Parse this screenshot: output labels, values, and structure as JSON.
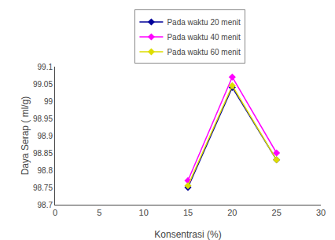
{
  "chart_data": {
    "type": "line",
    "xlabel": "Konsentrasi (%)",
    "ylabel": "Daya Serap ( ml/g)",
    "x": [
      15,
      20,
      25
    ],
    "series": [
      {
        "name": "Pada waktu 20 menit",
        "color": "#000099",
        "marker": "diamond",
        "line_style": "solid",
        "values": [
          98.75,
          99.04,
          98.83
        ]
      },
      {
        "name": "Pada waktu 40 menit",
        "color": "#FF00FF",
        "marker": "diamond",
        "line_style": "solid",
        "values": [
          98.77,
          99.07,
          98.85
        ]
      },
      {
        "name": "Pada waktu 60 menit",
        "color": "#DDDD00",
        "marker": "diamond",
        "line_style": "solid",
        "values": [
          98.755,
          99.045,
          98.83
        ]
      }
    ],
    "xlim": [
      0,
      30
    ],
    "xticks": [
      0,
      5,
      10,
      15,
      20,
      25,
      30
    ],
    "ylim": [
      98.7,
      99.1
    ],
    "yticks": [
      98.7,
      98.75,
      98.8,
      98.85,
      98.9,
      98.95,
      99,
      99.05,
      99.1
    ],
    "grid": false,
    "legend": "top"
  }
}
